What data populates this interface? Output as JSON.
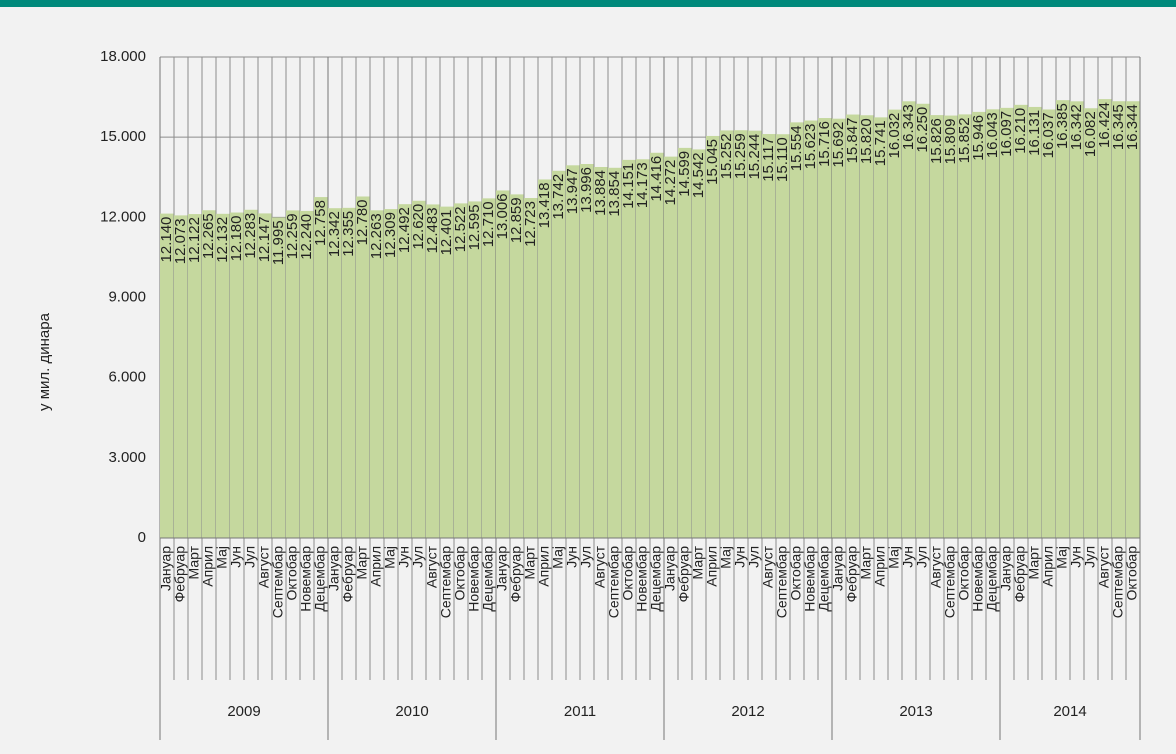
{
  "chart_data": {
    "type": "bar",
    "y_label": "у мил. динара",
    "color": "#c5d89e",
    "ylim": [
      0,
      18000
    ],
    "yticks": [
      0,
      {
        "value": 3000,
        "label": "3.000"
      },
      {
        "value": 6000,
        "label": "6.000"
      },
      {
        "value": 9000,
        "label": "9.000"
      },
      {
        "value": 12000,
        "label": "12.000"
      },
      {
        "value": 15000,
        "label": "15.000"
      },
      {
        "value": 18000,
        "label": "18.000"
      }
    ],
    "grid": true,
    "groups": [
      {
        "label": "2009",
        "categories": [
          "Јануар",
          "Фебруар",
          "Март",
          "Април",
          "Мај",
          "Јун",
          "Јул",
          "Август",
          "Септембар",
          "Октобар",
          "Новембар",
          "Децембар"
        ],
        "values": [
          12140,
          12073,
          12122,
          12265,
          12132,
          12180,
          12283,
          12147,
          11995,
          12259,
          12240,
          12758
        ],
        "value_labels": [
          "12.140",
          "12.073",
          "12.122",
          "12.265",
          "12.132",
          "12.180",
          "12.283",
          "12.147",
          "11.995",
          "12.259",
          "12.240",
          "12.758"
        ]
      },
      {
        "label": "2010",
        "categories": [
          "Јануар",
          "Фебруар",
          "Март",
          "Април",
          "Мај",
          "Јун",
          "Јул",
          "Август",
          "Септембар",
          "Октобар",
          "Новембар",
          "Децембар"
        ],
        "values": [
          12342,
          12355,
          12780,
          12263,
          12309,
          12492,
          12620,
          12483,
          12401,
          12522,
          12595,
          12710
        ],
        "value_labels": [
          "12.342",
          "12.355",
          "12.780",
          "12.263",
          "12.309",
          "12.492",
          "12.620",
          "12.483",
          "12.401",
          "12.522",
          "12.595",
          "12.710"
        ]
      },
      {
        "label": "2011",
        "categories": [
          "Јануар",
          "Фебруар",
          "Март",
          "Април",
          "Мај",
          "Јун",
          "Јул",
          "Август",
          "Септембар",
          "Октобар",
          "Новембар",
          "Децембар"
        ],
        "values": [
          13006,
          12859,
          12723,
          13418,
          13742,
          13947,
          13996,
          13884,
          13854,
          14151,
          14173,
          14416
        ],
        "value_labels": [
          "13.006",
          "12.859",
          "12.723",
          "13.418",
          "13.742",
          "13.947",
          "13.996",
          "13.884",
          "13.854",
          "14.151",
          "14.173",
          "14.416"
        ]
      },
      {
        "label": "2012",
        "categories": [
          "Јануар",
          "Фебруар",
          "Март",
          "Април",
          "Мај",
          "Јун",
          "Јул",
          "Август",
          "Септембар",
          "Октобар",
          "Новембар",
          "Децембар"
        ],
        "values": [
          14272,
          14599,
          14542,
          15045,
          15252,
          15259,
          15244,
          15117,
          15110,
          15554,
          15623,
          15716
        ],
        "value_labels": [
          "14.272",
          "14.599",
          "14.542",
          "15.045",
          "15.252",
          "15.259",
          "15.244",
          "15.117",
          "15.110",
          "15.554",
          "15.623",
          "15.716"
        ]
      },
      {
        "label": "2013",
        "categories": [
          "Јануар",
          "Фебруар",
          "Март",
          "Април",
          "Мај",
          "Јун",
          "Јул",
          "Август",
          "Септембар",
          "Октобар",
          "Новембар",
          "Децембар"
        ],
        "values": [
          15692,
          15847,
          15820,
          15741,
          16032,
          16343,
          16250,
          15826,
          15809,
          15852,
          15946,
          16043
        ],
        "value_labels": [
          "15.692",
          "15.847",
          "15.820",
          "15.741",
          "16.032",
          "16.343",
          "16.250",
          "15.826",
          "15.809",
          "15.852",
          "15.946",
          "16.043"
        ]
      },
      {
        "label": "2014",
        "categories": [
          "Јануар",
          "Фебруар",
          "Март",
          "Април",
          "Мај",
          "Јун",
          "Јул",
          "Август",
          "Септембар",
          "Октобар"
        ],
        "values": [
          16097,
          16210,
          16131,
          16037,
          16385,
          16342,
          16082,
          16424,
          16345,
          16344
        ],
        "value_labels": [
          "16.097",
          "16.210",
          "16.131",
          "16.037",
          "16.385",
          "16.342",
          "16.082",
          "16.424",
          "16.345",
          "16.344"
        ]
      }
    ]
  }
}
